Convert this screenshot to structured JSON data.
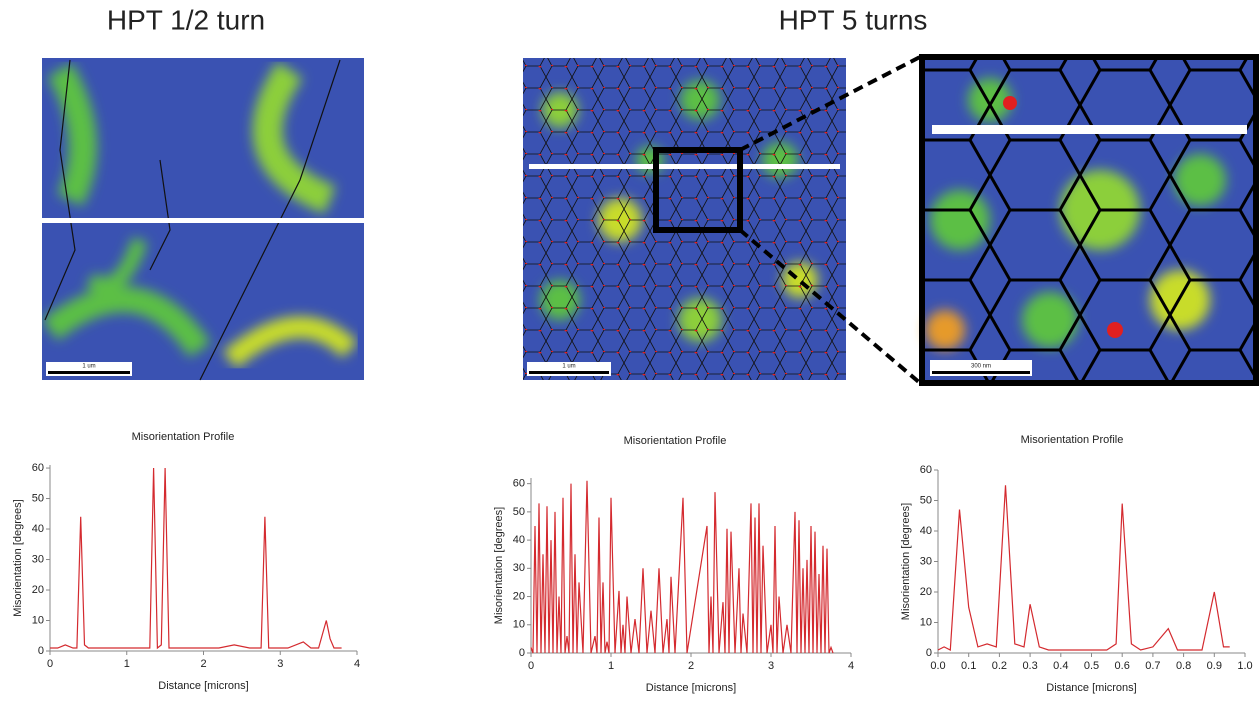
{
  "headers": [
    "HPT 1/2 turn",
    "HPT 5 turns"
  ],
  "scale_bars": [
    "1 um",
    "1 um",
    "300 nm"
  ],
  "chart_data": [
    {
      "type": "line",
      "title": "Misorientation Profile",
      "xlabel": "Distance [microns]",
      "ylabel": "Misorientation [degrees]",
      "color": "#d42a2f",
      "xlim": [
        0,
        4
      ],
      "ylim": [
        0,
        61
      ],
      "xticks": [
        0,
        1,
        2,
        3,
        4
      ],
      "yticks": [
        0,
        10,
        20,
        30,
        40,
        50,
        60
      ],
      "x": [
        0,
        0.1,
        0.2,
        0.3,
        0.35,
        0.4,
        0.45,
        0.5,
        0.7,
        0.9,
        1.1,
        1.3,
        1.35,
        1.4,
        1.45,
        1.5,
        1.55,
        1.6,
        1.8,
        2.0,
        2.2,
        2.4,
        2.6,
        2.75,
        2.8,
        2.85,
        2.9,
        3.1,
        3.3,
        3.4,
        3.5,
        3.6,
        3.65,
        3.7,
        3.8
      ],
      "values": [
        1,
        1,
        2,
        1,
        1,
        44,
        2,
        1,
        1,
        1,
        1,
        1,
        60,
        1,
        2,
        60,
        1,
        1,
        1,
        1,
        1,
        2,
        1,
        1,
        44,
        1,
        1,
        1,
        3,
        1,
        1,
        10,
        4,
        1,
        1
      ]
    },
    {
      "type": "line",
      "title": "Misorientation Profile",
      "xlabel": "Distance [microns]",
      "ylabel": "Misorientation [degrees]",
      "color": "#d42a2f",
      "xlim": [
        0,
        4
      ],
      "ylim": [
        0,
        62
      ],
      "xticks": [
        0,
        1,
        2,
        3,
        4
      ],
      "yticks": [
        0,
        10,
        20,
        30,
        40,
        50,
        60
      ],
      "x": [
        0,
        0.025,
        0.05,
        0.075,
        0.1,
        0.125,
        0.15,
        0.175,
        0.2,
        0.225,
        0.25,
        0.275,
        0.3,
        0.325,
        0.35,
        0.375,
        0.4,
        0.425,
        0.45,
        0.475,
        0.5,
        0.525,
        0.55,
        0.575,
        0.6,
        0.65,
        0.7,
        0.75,
        0.8,
        0.825,
        0.85,
        0.875,
        0.9,
        0.925,
        0.95,
        0.975,
        1.0,
        1.05,
        1.1,
        1.125,
        1.15,
        1.175,
        1.2,
        1.25,
        1.3,
        1.35,
        1.4,
        1.45,
        1.5,
        1.55,
        1.6,
        1.65,
        1.7,
        1.725,
        1.75,
        1.8,
        1.9,
        1.95,
        2.2,
        2.225,
        2.25,
        2.275,
        2.3,
        2.35,
        2.4,
        2.425,
        2.45,
        2.475,
        2.5,
        2.55,
        2.6,
        2.625,
        2.65,
        2.7,
        2.75,
        2.775,
        2.8,
        2.825,
        2.85,
        2.875,
        2.9,
        2.95,
        3.0,
        3.025,
        3.05,
        3.075,
        3.1,
        3.15,
        3.2,
        3.25,
        3.3,
        3.325,
        3.35,
        3.375,
        3.4,
        3.425,
        3.45,
        3.475,
        3.5,
        3.525,
        3.55,
        3.575,
        3.6,
        3.625,
        3.65,
        3.675,
        3.7,
        3.725,
        3.75,
        3.775
      ],
      "values": [
        2,
        0,
        45,
        0,
        53,
        0,
        35,
        0,
        52,
        0,
        40,
        0,
        50,
        0,
        20,
        0,
        55,
        0,
        6,
        0,
        60,
        0,
        35,
        0,
        25,
        0,
        61,
        0,
        6,
        0,
        48,
        0,
        25,
        0,
        4,
        0,
        55,
        0,
        22,
        0,
        10,
        0,
        20,
        0,
        12,
        0,
        30,
        0,
        15,
        0,
        30,
        0,
        12,
        0,
        27,
        0,
        55,
        0,
        45,
        0,
        20,
        0,
        57,
        0,
        18,
        0,
        44,
        0,
        43,
        0,
        30,
        0,
        14,
        0,
        53,
        0,
        48,
        0,
        53,
        0,
        38,
        0,
        10,
        0,
        45,
        0,
        20,
        0,
        10,
        0,
        50,
        0,
        47,
        0,
        30,
        0,
        33,
        0,
        45,
        0,
        43,
        0,
        28,
        0,
        38,
        0,
        37,
        0,
        2,
        0
      ]
    },
    {
      "type": "line",
      "title": "Misorientation Profile",
      "xlabel": "Distance [microns]",
      "ylabel": "Misorientation [degrees]",
      "color": "#d42a2f",
      "xlim": [
        0,
        1
      ],
      "ylim": [
        0,
        60
      ],
      "xticks": [
        {
          "value": 0,
          "label": "0.0"
        },
        0.1,
        0.2,
        0.3,
        0.4,
        0.5,
        0.6,
        0.7,
        0.8,
        0.9,
        {
          "value": 1,
          "label": "1.0"
        }
      ],
      "yticks": [
        0,
        10,
        20,
        30,
        40,
        50,
        60
      ],
      "x": [
        0,
        0.02,
        0.04,
        0.07,
        0.1,
        0.13,
        0.16,
        0.19,
        0.22,
        0.25,
        0.28,
        0.3,
        0.33,
        0.36,
        0.4,
        0.45,
        0.5,
        0.55,
        0.58,
        0.6,
        0.63,
        0.66,
        0.7,
        0.75,
        0.78,
        0.82,
        0.86,
        0.9,
        0.93,
        0.95
      ],
      "values": [
        1,
        2,
        1,
        47,
        15,
        2,
        3,
        2,
        55,
        3,
        2,
        16,
        2,
        1,
        1,
        1,
        1,
        1,
        3,
        49,
        3,
        1,
        2,
        8,
        1,
        1,
        1,
        20,
        2,
        2
      ]
    }
  ]
}
